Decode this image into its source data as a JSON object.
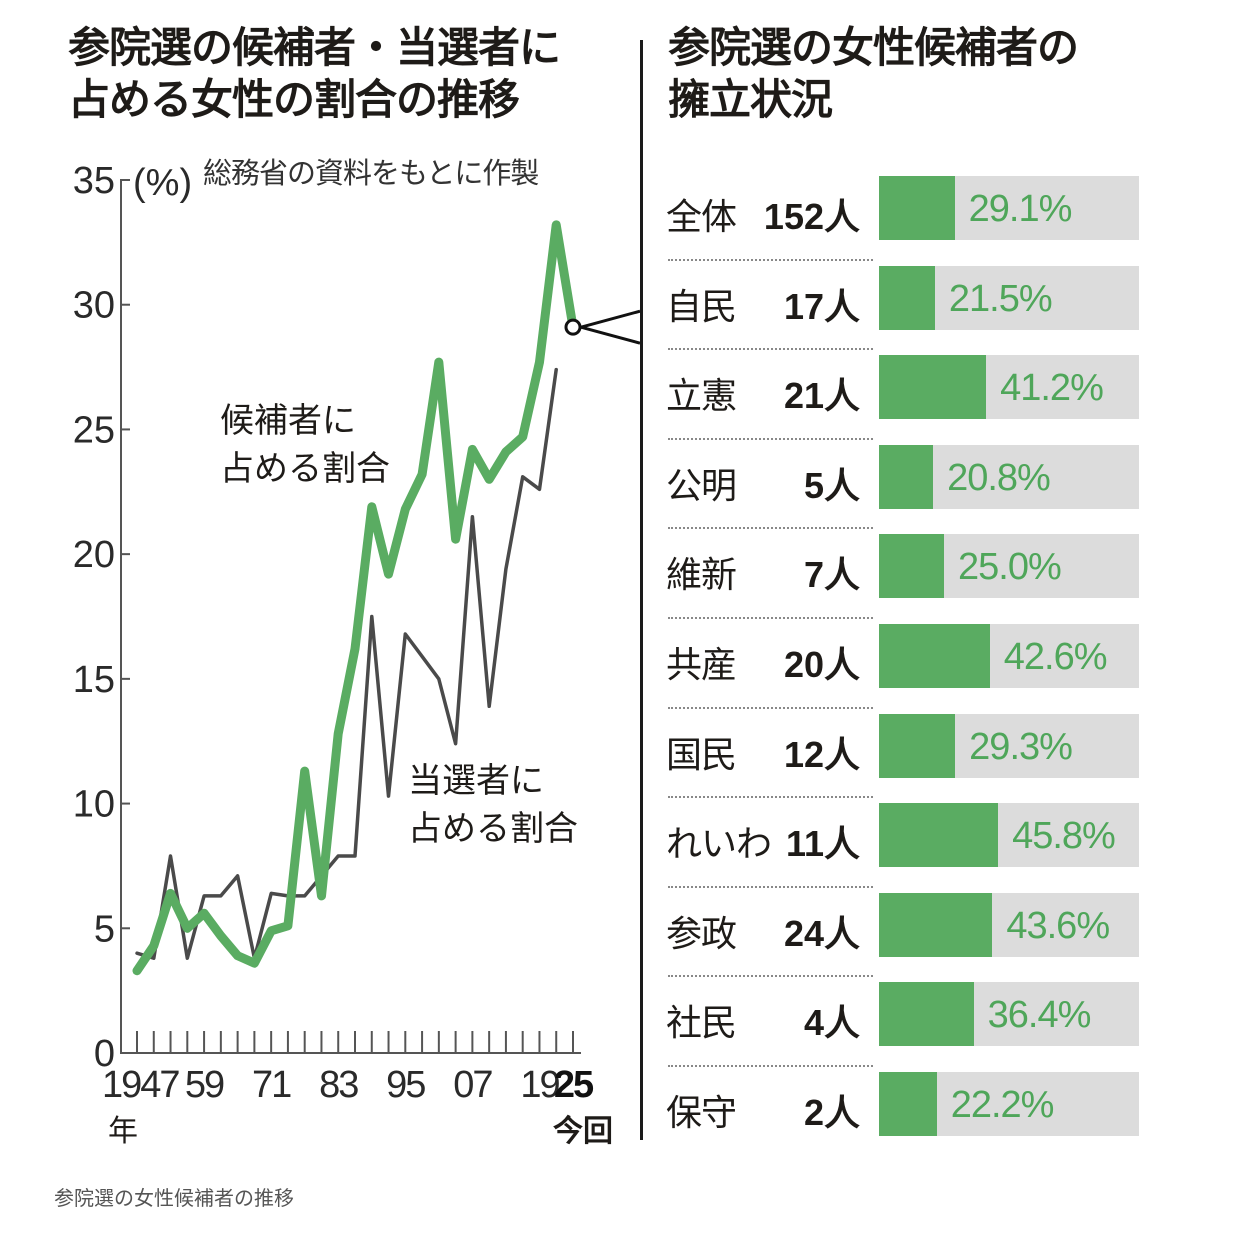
{
  "left_panel": {
    "title_line1": "参院選の候補者・当選者に",
    "title_line2": "占める女性の割合の推移",
    "source_note": "総務省の資料をもとに作製",
    "unit": "(%)"
  },
  "right_panel": {
    "title_line1": "参院選の女性候補者の",
    "title_line2": "擁立状況"
  },
  "caption": "参院選の女性候補者の推移",
  "colors": {
    "candidates_line": "#5aac62",
    "elected_line": "#4a4a4a",
    "bar_fill": "#5aac62",
    "bar_background": "#dcdcdc",
    "pct_text": "#4fa65a"
  },
  "chart_data": [
    {
      "type": "line",
      "title": "参院選の候補者・当選者に占める女性の割合の推移",
      "ylabel": "(%)",
      "xlabel": "年",
      "ylim": [
        0,
        35
      ],
      "yticks": [
        0,
        5,
        10,
        15,
        20,
        25,
        30,
        35
      ],
      "x": [
        1947,
        1950,
        1953,
        1956,
        1959,
        1962,
        1965,
        1968,
        1971,
        1974,
        1977,
        1980,
        1983,
        1986,
        1989,
        1992,
        1995,
        1998,
        2001,
        2004,
        2007,
        2010,
        2013,
        2016,
        2019,
        2022,
        2025
      ],
      "xtick_labels": [
        {
          "year": 1947,
          "label": "1947",
          "sub": "年"
        },
        {
          "year": 1959,
          "label": "59"
        },
        {
          "year": 1971,
          "label": "71"
        },
        {
          "year": 1983,
          "label": "83"
        },
        {
          "year": 1995,
          "label": "95"
        },
        {
          "year": 2007,
          "label": "07"
        },
        {
          "year": 2019,
          "label": "19"
        },
        {
          "year": 2025,
          "label": "25",
          "sub": "今回",
          "bold": true
        }
      ],
      "grid": false,
      "series": [
        {
          "name": "候補者に占める割合",
          "label_line1": "候補者に",
          "label_line2": "占める割合",
          "values": [
            3.3,
            4.3,
            6.4,
            5.0,
            5.6,
            4.7,
            3.9,
            3.6,
            4.9,
            5.1,
            11.3,
            6.3,
            12.8,
            16.2,
            21.9,
            19.2,
            21.8,
            23.2,
            27.7,
            20.6,
            24.2,
            23.0,
            24.1,
            24.7,
            27.7,
            33.2,
            29.1
          ]
        },
        {
          "name": "当選者に占める割合",
          "label_line1": "当選者に",
          "label_line2": "占める割合",
          "values": [
            4.0,
            3.8,
            7.9,
            3.8,
            6.3,
            6.3,
            7.1,
            3.8,
            6.4,
            6.3,
            6.3,
            7.1,
            7.9,
            7.9,
            17.5,
            10.3,
            16.8,
            15.9,
            15.0,
            12.4,
            21.5,
            13.9,
            19.4,
            23.1,
            22.6,
            27.4,
            null
          ]
        }
      ]
    },
    {
      "type": "bar",
      "title": "参院選の女性候補者の擁立状況",
      "categories": [
        "全体",
        "自民",
        "立憲",
        "公明",
        "維新",
        "共産",
        "国民",
        "れいわ",
        "参政",
        "社民",
        "保守"
      ],
      "counts": [
        "152人",
        "17人",
        "21人",
        "5人",
        "7人",
        "20人",
        "12人",
        "11人",
        "24人",
        "4人",
        "2人"
      ],
      "values": [
        29.1,
        21.5,
        41.2,
        20.8,
        25.0,
        42.6,
        29.3,
        45.8,
        43.6,
        36.4,
        22.2
      ],
      "value_labels": [
        "29.1%",
        "21.5%",
        "41.2%",
        "20.8%",
        "25.0%",
        "42.6%",
        "29.3%",
        "45.8%",
        "43.6%",
        "36.4%",
        "22.2%"
      ],
      "xlim": [
        0,
        100
      ]
    }
  ]
}
